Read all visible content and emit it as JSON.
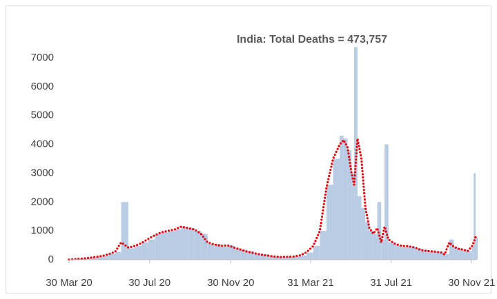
{
  "chart_data": {
    "type": "bar-line",
    "title": "India: Total Deaths = 473,757",
    "x": [
      "2020-03-30",
      "2020-04-09",
      "2020-04-19",
      "2020-04-29",
      "2020-05-09",
      "2020-05-19",
      "2020-05-29",
      "2020-06-08",
      "2020-06-17",
      "2020-06-28",
      "2020-07-08",
      "2020-07-18",
      "2020-07-28",
      "2020-08-07",
      "2020-08-17",
      "2020-08-27",
      "2020-09-06",
      "2020-09-16",
      "2020-09-26",
      "2020-10-06",
      "2020-10-16",
      "2020-10-26",
      "2020-11-05",
      "2020-11-15",
      "2020-11-25",
      "2020-12-05",
      "2020-12-15",
      "2020-12-25",
      "2021-01-04",
      "2021-01-14",
      "2021-01-24",
      "2021-02-03",
      "2021-02-13",
      "2021-02-23",
      "2021-03-05",
      "2021-03-15",
      "2021-03-25",
      "2021-04-04",
      "2021-04-14",
      "2021-04-24",
      "2021-05-04",
      "2021-05-14",
      "2021-05-20",
      "2021-05-26",
      "2021-06-01",
      "2021-06-05",
      "2021-06-10",
      "2021-06-16",
      "2021-06-22",
      "2021-06-28",
      "2021-07-04",
      "2021-07-10",
      "2021-07-16",
      "2021-07-21",
      "2021-07-27",
      "2021-08-06",
      "2021-08-16",
      "2021-08-26",
      "2021-09-05",
      "2021-09-15",
      "2021-09-25",
      "2021-10-05",
      "2021-10-15",
      "2021-10-20",
      "2021-10-27",
      "2021-11-03",
      "2021-11-10",
      "2021-11-17",
      "2021-11-24",
      "2021-11-30",
      "2021-12-03",
      "2021-12-06"
    ],
    "series": [
      {
        "type": "bar",
        "color": "#b8cce4",
        "values": [
          5,
          30,
          40,
          70,
          100,
          140,
          200,
          270,
          2000,
          400,
          480,
          600,
          700,
          900,
          950,
          1000,
          1050,
          1150,
          1100,
          1000,
          900,
          550,
          550,
          450,
          500,
          400,
          350,
          300,
          220,
          180,
          140,
          110,
          90,
          100,
          110,
          150,
          250,
          480,
          1000,
          2600,
          3500,
          4300,
          4200,
          3800,
          3000,
          7374,
          2200,
          1800,
          1300,
          1000,
          900,
          2000,
          700,
          4000,
          600,
          500,
          450,
          450,
          400,
          350,
          300,
          280,
          250,
          200,
          700,
          450,
          400,
          350,
          300,
          500,
          3000,
          800
        ]
      },
      {
        "type": "line",
        "color": "#e8000b",
        "values": [
          4,
          25,
          38,
          65,
          95,
          130,
          190,
          280,
          600,
          420,
          480,
          580,
          720,
          850,
          950,
          1000,
          1050,
          1150,
          1100,
          1050,
          900,
          600,
          530,
          480,
          500,
          420,
          350,
          280,
          230,
          180,
          150,
          110,
          95,
          100,
          110,
          150,
          260,
          480,
          1000,
          2500,
          3500,
          4000,
          4150,
          3900,
          3000,
          2600,
          4200,
          3500,
          1800,
          1100,
          900,
          1100,
          600,
          1150,
          700,
          550,
          480,
          470,
          420,
          330,
          300,
          280,
          250,
          180,
          600,
          450,
          380,
          350,
          300,
          450,
          600,
          800
        ]
      }
    ],
    "xlim": [
      "2020-03-30",
      "2021-12-07"
    ],
    "xticks": [
      {
        "value": "2020-03-30",
        "label": "30 Mar 20"
      },
      {
        "value": "2020-07-30",
        "label": "30 Jul 20"
      },
      {
        "value": "2020-11-30",
        "label": "30 Nov 20"
      },
      {
        "value": "2021-03-31",
        "label": "31 Mar 21"
      },
      {
        "value": "2021-07-31",
        "label": "31 Jul 21"
      },
      {
        "value": "2021-11-30",
        "label": "30 Nov 21"
      }
    ],
    "ylim": [
      0,
      7000
    ],
    "yticks": [
      0,
      1000,
      2000,
      3000,
      4000,
      5000,
      6000,
      7000
    ],
    "grid": false
  }
}
